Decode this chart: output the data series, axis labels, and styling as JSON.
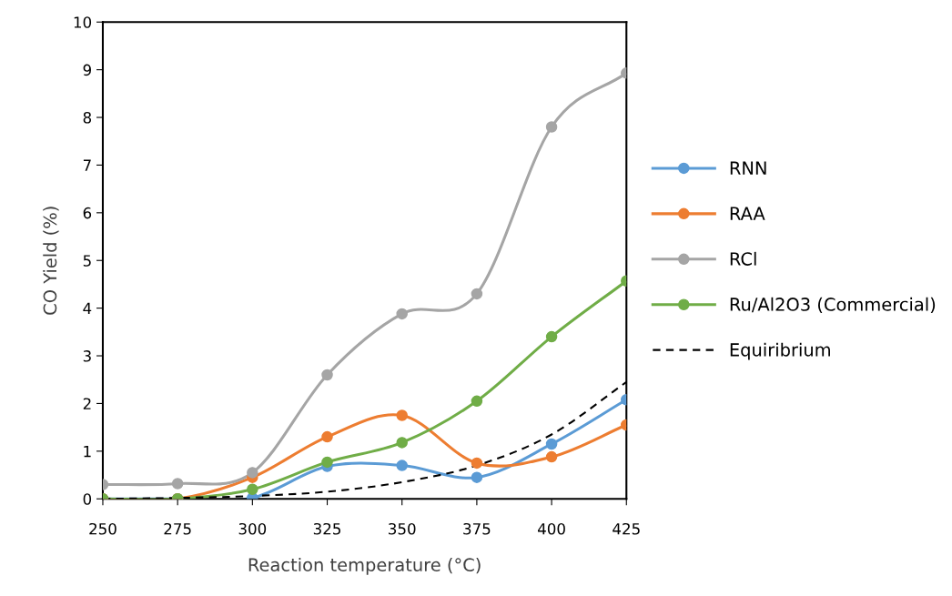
{
  "chart_data": {
    "type": "line",
    "xlabel": "Reaction temperature (°C)",
    "ylabel": "CO Yield (%)",
    "x": [
      250,
      275,
      300,
      325,
      350,
      375,
      400,
      425
    ],
    "xlim": [
      250,
      425
    ],
    "xticks": [
      250,
      275,
      300,
      325,
      350,
      375,
      400,
      425
    ],
    "ylim": [
      0,
      10
    ],
    "yticks": [
      0,
      1,
      2,
      3,
      4,
      5,
      6,
      7,
      8,
      9,
      10
    ],
    "grid": false,
    "legend": "right",
    "marker": "circle",
    "series": [
      {
        "name": "RNN",
        "color": "#5b9bd5",
        "values": [
          0,
          0,
          0.02,
          0.68,
          0.7,
          0.45,
          1.15,
          2.08
        ]
      },
      {
        "name": "RAA",
        "color": "#ed7d31",
        "values": [
          0,
          0,
          0.45,
          1.3,
          1.75,
          0.75,
          0.88,
          1.55
        ]
      },
      {
        "name": "RCl",
        "color": "#a5a5a5",
        "values": [
          0.3,
          0.32,
          0.55,
          2.6,
          3.88,
          4.3,
          7.8,
          8.93
        ]
      },
      {
        "name": "Ru/Al2O3 (Commercial)",
        "color": "#70ad47",
        "values": [
          0,
          0,
          0.2,
          0.77,
          1.18,
          2.05,
          3.4,
          4.57
        ]
      },
      {
        "name": "Equiribrium",
        "color": "#000000",
        "marker": "none",
        "line_style": "dashed",
        "values": [
          0,
          0.02,
          0.06,
          0.15,
          0.35,
          0.7,
          1.35,
          2.45
        ]
      }
    ]
  }
}
